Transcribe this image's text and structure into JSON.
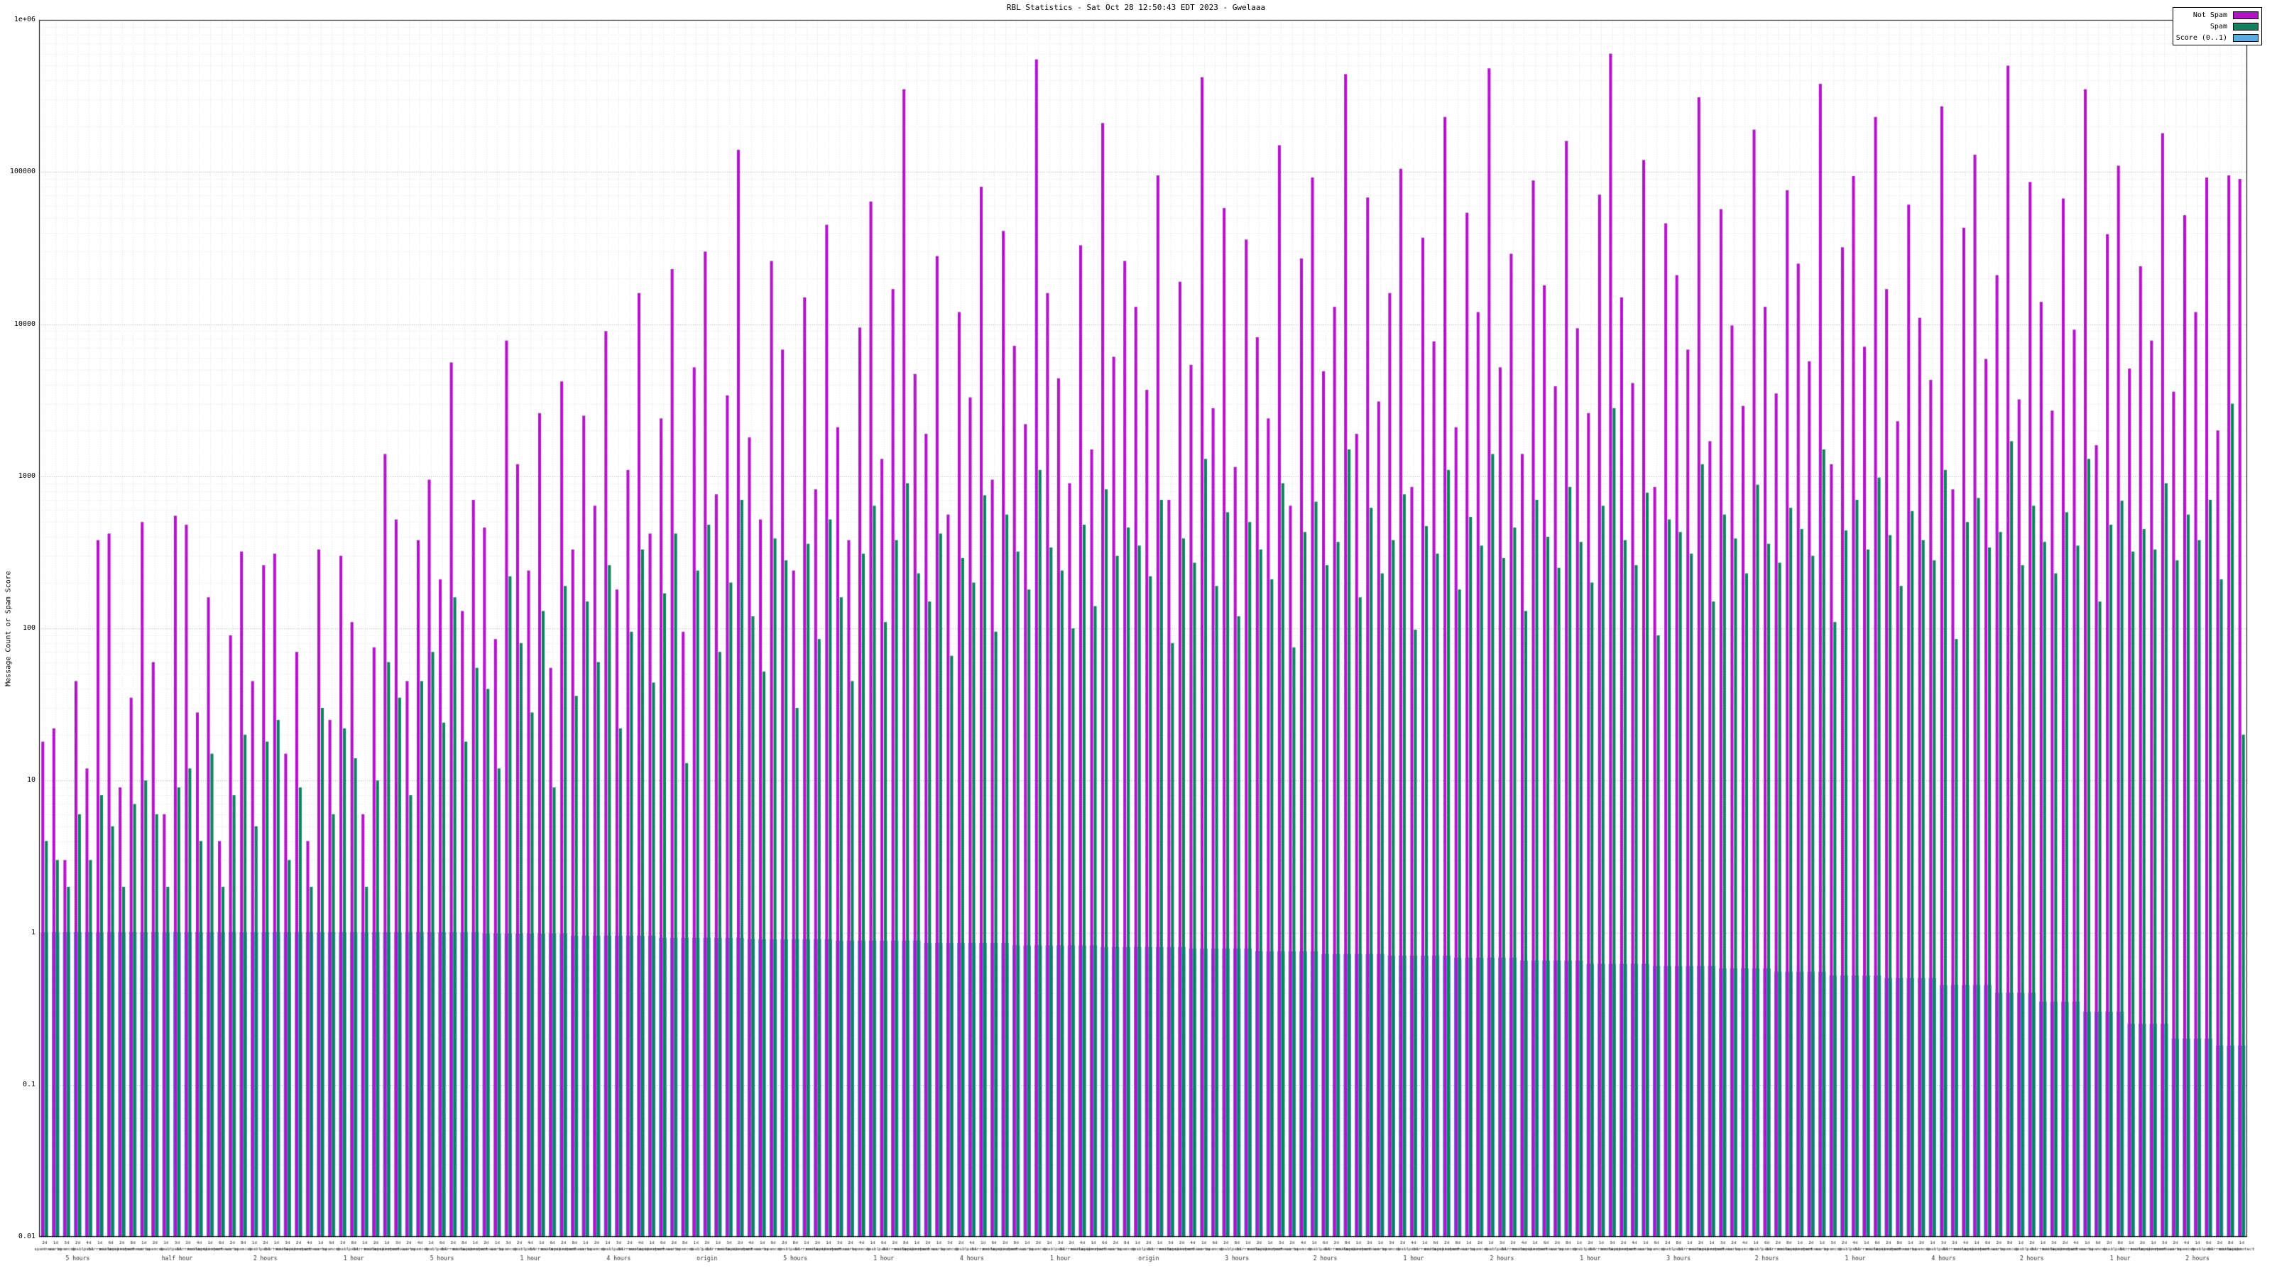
{
  "chart_data": {
    "type": "bar",
    "title": "RBL Statistics - Sat Oct 28 12:50:43 EDT 2023 - Gwelaaa",
    "xlabel": "",
    "ylabel": "Message Count or Spam Score",
    "yscale": "log",
    "ylim": [
      0.01,
      1000000
    ],
    "ytick_labels": [
      "0.01",
      "0.1",
      "1",
      "10",
      "100",
      "1000",
      "10000",
      "100000",
      "1e+06"
    ],
    "grid": true,
    "legend_position": "top-right",
    "legend": [
      {
        "label": "Not Spam",
        "color": "#b213c9"
      },
      {
        "label": "Spam",
        "color": "#0e8060"
      },
      {
        "label": "Score (0..1)",
        "color": "#56aee0"
      }
    ],
    "series": {
      "not_spam": [
        18,
        22,
        3,
        45,
        12,
        380,
        420,
        9,
        35,
        500,
        60,
        6,
        550,
        480,
        28,
        160,
        4,
        90,
        320,
        45,
        260,
        310,
        15,
        70,
        4,
        330,
        25,
        300,
        110,
        6,
        75,
        1400,
        520,
        45,
        380,
        950,
        210,
        5600,
        130,
        700,
        460,
        85,
        7800,
        1200,
        240,
        2600,
        55,
        4200,
        330,
        2500,
        640,
        9000,
        180,
        1100,
        16000,
        420,
        2400,
        23000,
        95,
        5200,
        30000,
        760,
        3400,
        140000,
        1800,
        520,
        26000,
        6800,
        240,
        15000,
        820,
        45000,
        2100,
        380,
        9500,
        64000,
        1300,
        17000,
        350000,
        4700,
        1900,
        28000,
        560,
        12000,
        3300,
        80000,
        950,
        41000,
        7200,
        2200,
        550000,
        16000,
        4400,
        900,
        33000,
        1500,
        210000,
        6100,
        26000,
        13000,
        3700,
        95000,
        700,
        19000,
        5400,
        420000,
        2800,
        58000,
        1150,
        36000,
        8200,
        2400,
        150000,
        640,
        27000,
        92000,
        4900,
        13000,
        440000,
        1900,
        68000,
        3100,
        16000,
        105000,
        850,
        37000,
        7700,
        230000,
        2100,
        54000,
        12000,
        480000,
        5200,
        29000,
        1400,
        88000,
        18000,
        3900,
        160000,
        9400,
        2600,
        71000,
        600000,
        15000,
        4100,
        120000,
        850,
        46000,
        21000,
        6800,
        310000,
        1700,
        57000,
        9800,
        2900,
        190000,
        13000,
        3500,
        76000,
        25000,
        5700,
        380000,
        1200,
        32000,
        94000,
        7100,
        230000,
        17000,
        2300,
        61000,
        11000,
        4300,
        270000,
        820,
        43000,
        130000,
        5900,
        21000,
        500000,
        3200,
        86000,
        14000,
        2700,
        67000,
        9200,
        350000,
        1600,
        39000,
        110000,
        5100,
        24000,
        7800,
        180000,
        3600,
        52000,
        12000,
        92000,
        2000,
        95000,
        90000
      ],
      "spam": [
        4,
        3,
        2,
        6,
        3,
        8,
        5,
        2,
        7,
        10,
        6,
        2,
        9,
        12,
        4,
        15,
        2,
        8,
        20,
        5,
        18,
        25,
        3,
        9,
        2,
        30,
        6,
        22,
        14,
        2,
        10,
        60,
        35,
        8,
        45,
        70,
        24,
        160,
        18,
        55,
        40,
        12,
        220,
        80,
        28,
        130,
        9,
        190,
        36,
        150,
        60,
        260,
        22,
        95,
        330,
        44,
        170,
        420,
        13,
        240,
        480,
        70,
        200,
        700,
        120,
        52,
        390,
        280,
        30,
        360,
        85,
        520,
        160,
        45,
        310,
        640,
        110,
        380,
        900,
        230,
        150,
        420,
        66,
        290,
        200,
        750,
        95,
        560,
        320,
        180,
        1100,
        340,
        240,
        100,
        480,
        140,
        820,
        300,
        460,
        350,
        220,
        700,
        80,
        390,
        270,
        1300,
        190,
        580,
        120,
        500,
        330,
        210,
        900,
        75,
        430,
        680,
        260,
        370,
        1500,
        160,
        620,
        230,
        380,
        760,
        98,
        470,
        310,
        1100,
        180,
        540,
        350,
        1400,
        290,
        460,
        130,
        700,
        400,
        250,
        850,
        370,
        200,
        640,
        2800,
        380,
        260,
        780,
        90,
        520,
        430,
        310,
        1200,
        150,
        560,
        390,
        230,
        880,
        360,
        270,
        620,
        450,
        300,
        1500,
        110,
        440,
        700,
        330,
        980,
        410,
        190,
        590,
        380,
        280,
        1100,
        85,
        500,
        720,
        340,
        430,
        1700,
        260,
        640,
        370,
        230,
        580,
        350,
        1300,
        150,
        480,
        690,
        320,
        450,
        330,
        900,
        280,
        560,
        380,
        700,
        210,
        3000,
        20
      ],
      "score_runs": [
        [
          1.0,
          40
        ],
        [
          0.98,
          8
        ],
        [
          0.95,
          8
        ],
        [
          0.92,
          8
        ],
        [
          0.9,
          8
        ],
        [
          0.88,
          8
        ],
        [
          0.85,
          8
        ],
        [
          0.82,
          8
        ],
        [
          0.8,
          8
        ],
        [
          0.78,
          6
        ],
        [
          0.75,
          6
        ],
        [
          0.72,
          6
        ],
        [
          0.7,
          6
        ],
        [
          0.68,
          6
        ],
        [
          0.65,
          6
        ],
        [
          0.62,
          6
        ],
        [
          0.6,
          6
        ],
        [
          0.58,
          5
        ],
        [
          0.55,
          5
        ],
        [
          0.52,
          5
        ],
        [
          0.5,
          5
        ],
        [
          0.45,
          5
        ],
        [
          0.4,
          4
        ],
        [
          0.35,
          4
        ],
        [
          0.3,
          4
        ],
        [
          0.25,
          4
        ],
        [
          0.2,
          4
        ],
        [
          0.18,
          3
        ]
      ]
    },
    "x_axis": {
      "row1_cycle": [
        "2d",
        "1d",
        "3d",
        "2d",
        "4d",
        "1d",
        "6d",
        "2d",
        "8d",
        "1d"
      ],
      "row2_cycle": [
        "spamhaus",
        "sorbs",
        "spamcop",
        "dnsbl",
        "psbl",
        "barracuda",
        "mailspike",
        "uceprotect"
      ],
      "group_labels": [
        {
          "pos": 3,
          "label": "5 hours"
        },
        {
          "pos": 12,
          "label": "half hour"
        },
        {
          "pos": 20,
          "label": "2 hours"
        },
        {
          "pos": 28,
          "label": "1 hour"
        },
        {
          "pos": 36,
          "label": "5 hours"
        },
        {
          "pos": 44,
          "label": "1 hour"
        },
        {
          "pos": 52,
          "label": "4 hours"
        },
        {
          "pos": 60,
          "label": "origin"
        },
        {
          "pos": 68,
          "label": "5 hours"
        },
        {
          "pos": 76,
          "label": "1 hour"
        },
        {
          "pos": 84,
          "label": "4 hours"
        },
        {
          "pos": 92,
          "label": "1 hour"
        },
        {
          "pos": 100,
          "label": "origin"
        },
        {
          "pos": 108,
          "label": "3 hours"
        },
        {
          "pos": 116,
          "label": "2 hours"
        },
        {
          "pos": 124,
          "label": "1 hour"
        },
        {
          "pos": 132,
          "label": "2 hours"
        },
        {
          "pos": 140,
          "label": "1 hour"
        },
        {
          "pos": 148,
          "label": "3 hours"
        },
        {
          "pos": 156,
          "label": "2 hours"
        },
        {
          "pos": 164,
          "label": "1 hour"
        },
        {
          "pos": 172,
          "label": "4 hours"
        },
        {
          "pos": 180,
          "label": "2 hours"
        },
        {
          "pos": 188,
          "label": "1 hour"
        },
        {
          "pos": 195,
          "label": "2 hours"
        }
      ]
    }
  }
}
